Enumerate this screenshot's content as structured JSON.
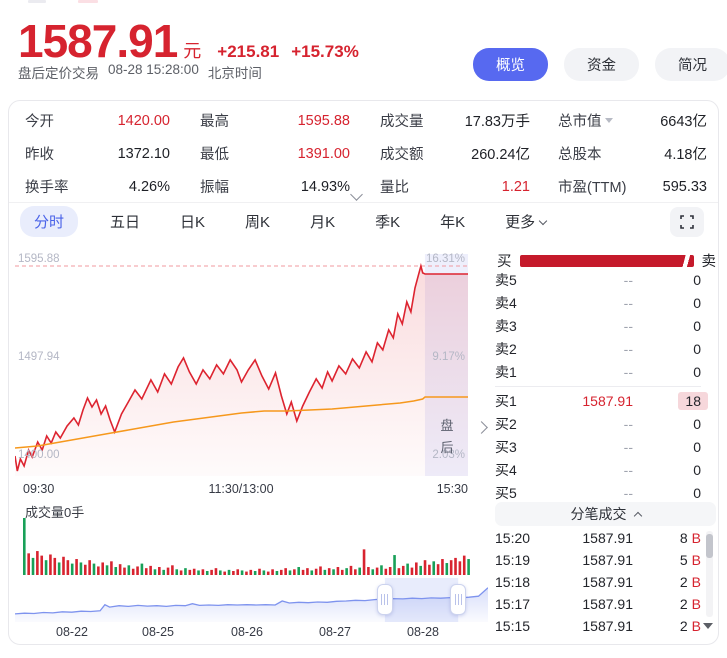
{
  "header": {
    "price": "1587.91",
    "currency": "元",
    "change": "+215.81",
    "change_pct": "+15.73%",
    "session_note": "盘后定价交易",
    "datetime": "08-28 15:28:00",
    "timezone": "北京时间",
    "view_buttons": [
      {
        "label": "概览",
        "active": true
      },
      {
        "label": "资金",
        "active": false
      },
      {
        "label": "简况",
        "active": false
      }
    ]
  },
  "stats": {
    "columns": [
      [
        {
          "label": "今开",
          "value": "1420.00",
          "red": true
        },
        {
          "label": "昨收",
          "value": "1372.10",
          "red": false
        },
        {
          "label": "换手率",
          "value": "4.26%",
          "red": false
        }
      ],
      [
        {
          "label": "最高",
          "value": "1595.88",
          "red": true
        },
        {
          "label": "最低",
          "value": "1391.00",
          "red": true
        },
        {
          "label": "振幅",
          "value": "14.93%",
          "red": false
        }
      ],
      [
        {
          "label": "成交量",
          "value": "17.83万手",
          "red": false
        },
        {
          "label": "成交额",
          "value": "260.24亿",
          "red": false
        },
        {
          "label": "量比",
          "value": "1.21",
          "red": true
        }
      ],
      [
        {
          "label": "总市值",
          "value": "6643亿",
          "red": false,
          "dropdown": true
        },
        {
          "label": "总股本",
          "value": "4.18亿",
          "red": false
        },
        {
          "label": "市盈(TTM)",
          "value": "595.33",
          "red": false
        }
      ]
    ]
  },
  "tabs": {
    "items": [
      "分时",
      "五日",
      "日K",
      "周K",
      "月K",
      "季K",
      "年K"
    ],
    "active_index": 0,
    "more_label": "更多"
  },
  "chart_data": [
    {
      "type": "line",
      "name": "intraday-price",
      "x_labels": [
        "09:30",
        "11:30/13:00",
        "15:30"
      ],
      "y_ticks": [
        "1595.88",
        "1497.94",
        "1400.00"
      ],
      "y_tick_values": [
        1595.88,
        1497.94,
        1400.0
      ],
      "pct_ticks": [
        "16.31%",
        "9.17%",
        "2.03%"
      ],
      "prev_close": 1372.1,
      "high_dashed": 1595.88,
      "last_price": 1587.91,
      "ylim": [
        1388,
        1600
      ],
      "after_hours_label": "盘后",
      "after_hours_start_frac": 0.905,
      "series": [
        {
          "name": "price",
          "color": "#dd2430",
          "points": [
            [
              0,
              1406
            ],
            [
              0.005,
              1391
            ],
            [
              0.012,
              1403
            ],
            [
              0.02,
              1396
            ],
            [
              0.03,
              1412
            ],
            [
              0.038,
              1405
            ],
            [
              0.05,
              1420
            ],
            [
              0.06,
              1412
            ],
            [
              0.07,
              1426
            ],
            [
              0.08,
              1419
            ],
            [
              0.09,
              1430
            ],
            [
              0.1,
              1424
            ],
            [
              0.115,
              1436
            ],
            [
              0.13,
              1444
            ],
            [
              0.14,
              1437
            ],
            [
              0.15,
              1452
            ],
            [
              0.16,
              1464
            ],
            [
              0.17,
              1455
            ],
            [
              0.18,
              1462
            ],
            [
              0.19,
              1448
            ],
            [
              0.2,
              1456
            ],
            [
              0.21,
              1442
            ],
            [
              0.22,
              1430
            ],
            [
              0.235,
              1448
            ],
            [
              0.25,
              1460
            ],
            [
              0.265,
              1472
            ],
            [
              0.28,
              1463
            ],
            [
              0.3,
              1482
            ],
            [
              0.315,
              1470
            ],
            [
              0.33,
              1488
            ],
            [
              0.345,
              1478
            ],
            [
              0.36,
              1495
            ],
            [
              0.372,
              1504
            ],
            [
              0.385,
              1490
            ],
            [
              0.4,
              1478
            ],
            [
              0.415,
              1492
            ],
            [
              0.43,
              1483
            ],
            [
              0.445,
              1497
            ],
            [
              0.46,
              1488
            ],
            [
              0.475,
              1502
            ],
            [
              0.49,
              1492
            ],
            [
              0.5,
              1480
            ],
            [
              0.515,
              1492
            ],
            [
              0.53,
              1502
            ],
            [
              0.545,
              1486
            ],
            [
              0.56,
              1473
            ],
            [
              0.575,
              1489
            ],
            [
              0.588,
              1466
            ],
            [
              0.6,
              1448
            ],
            [
              0.61,
              1460
            ],
            [
              0.622,
              1441
            ],
            [
              0.635,
              1456
            ],
            [
              0.65,
              1470
            ],
            [
              0.665,
              1483
            ],
            [
              0.678,
              1474
            ],
            [
              0.69,
              1490
            ],
            [
              0.7,
              1481
            ],
            [
              0.715,
              1496
            ],
            [
              0.73,
              1488
            ],
            [
              0.745,
              1503
            ],
            [
              0.76,
              1494
            ],
            [
              0.775,
              1510
            ],
            [
              0.788,
              1500
            ],
            [
              0.8,
              1519
            ],
            [
              0.812,
              1512
            ],
            [
              0.825,
              1532
            ],
            [
              0.835,
              1524
            ],
            [
              0.845,
              1548
            ],
            [
              0.855,
              1538
            ],
            [
              0.865,
              1560
            ],
            [
              0.874,
              1550
            ],
            [
              0.883,
              1574
            ],
            [
              0.89,
              1586
            ],
            [
              0.896,
              1595.88
            ],
            [
              0.9,
              1589
            ],
            [
              0.905,
              1587.91
            ],
            [
              1,
              1587.91
            ]
          ]
        },
        {
          "name": "avg",
          "color": "#f6981c",
          "points": [
            [
              0,
              1414
            ],
            [
              0.05,
              1416
            ],
            [
              0.1,
              1420
            ],
            [
              0.15,
              1424
            ],
            [
              0.2,
              1428
            ],
            [
              0.25,
              1432
            ],
            [
              0.3,
              1436
            ],
            [
              0.35,
              1440
            ],
            [
              0.4,
              1443
            ],
            [
              0.45,
              1446
            ],
            [
              0.5,
              1449
            ],
            [
              0.55,
              1451
            ],
            [
              0.6,
              1451
            ],
            [
              0.65,
              1452
            ],
            [
              0.7,
              1453
            ],
            [
              0.75,
              1455
            ],
            [
              0.8,
              1457
            ],
            [
              0.85,
              1459
            ],
            [
              0.88,
              1461
            ],
            [
              0.9,
              1463
            ],
            [
              0.905,
              1465
            ],
            [
              1,
              1465
            ]
          ]
        }
      ]
    },
    {
      "type": "bar",
      "name": "intraday-volume",
      "label": "成交量0手",
      "up_color": "#d8232f",
      "down_color": "#18a058",
      "heights": [
        100,
        38,
        30,
        42,
        34,
        26,
        36,
        30,
        22,
        32,
        26,
        20,
        28,
        22,
        18,
        26,
        20,
        15,
        22,
        17,
        24,
        14,
        19,
        13,
        17,
        11,
        15,
        20,
        12,
        16,
        10,
        14,
        9,
        13,
        17,
        10,
        8,
        12,
        9,
        11,
        8,
        10,
        7,
        9,
        12,
        8,
        6,
        9,
        7,
        10,
        8,
        6,
        9,
        7,
        11,
        8,
        6,
        10,
        7,
        9,
        12,
        8,
        10,
        14,
        9,
        12,
        8,
        11,
        15,
        9,
        12,
        10,
        14,
        9,
        12,
        16,
        10,
        13,
        45,
        14,
        10,
        13,
        17,
        11,
        14,
        35,
        12,
        16,
        20,
        13,
        22,
        16,
        26,
        18,
        24,
        19,
        28,
        21,
        26,
        30,
        24,
        34,
        28,
        62
      ],
      "colors": "grgrrgrrgrrgrgrrgrrgrgrrgrrgrrgrgrrgrgrrgrgrrgrgrrgrrgrgrrgrrgrgrrgrrgrgrrgrrgrrgrgrrgrrgrrgrrgrrgrrrrg"
    },
    {
      "type": "area",
      "name": "history-navigator",
      "x_labels": [
        "08-22",
        "08-25",
        "08-26",
        "08-27",
        "08-28"
      ],
      "color": "#7e93ee",
      "brush": [
        0.782,
        0.937
      ],
      "points": [
        [
          0,
          0.18
        ],
        [
          0.02,
          0.2
        ],
        [
          0.04,
          0.19
        ],
        [
          0.06,
          0.22
        ],
        [
          0.08,
          0.21
        ],
        [
          0.1,
          0.24
        ],
        [
          0.12,
          0.23
        ],
        [
          0.14,
          0.26
        ],
        [
          0.16,
          0.25
        ],
        [
          0.18,
          0.27
        ],
        [
          0.19,
          0.45
        ],
        [
          0.2,
          0.38
        ],
        [
          0.22,
          0.42
        ],
        [
          0.24,
          0.4
        ],
        [
          0.26,
          0.43
        ],
        [
          0.28,
          0.41
        ],
        [
          0.3,
          0.42
        ],
        [
          0.32,
          0.4
        ],
        [
          0.34,
          0.43
        ],
        [
          0.36,
          0.42
        ],
        [
          0.375,
          0.48
        ],
        [
          0.39,
          0.43
        ],
        [
          0.41,
          0.44
        ],
        [
          0.43,
          0.43
        ],
        [
          0.45,
          0.45
        ],
        [
          0.47,
          0.44
        ],
        [
          0.49,
          0.45
        ],
        [
          0.51,
          0.44
        ],
        [
          0.53,
          0.45
        ],
        [
          0.55,
          0.44
        ],
        [
          0.565,
          0.56
        ],
        [
          0.58,
          0.5
        ],
        [
          0.6,
          0.52
        ],
        [
          0.62,
          0.51
        ],
        [
          0.64,
          0.53
        ],
        [
          0.66,
          0.52
        ],
        [
          0.68,
          0.55
        ],
        [
          0.7,
          0.56
        ],
        [
          0.72,
          0.58
        ],
        [
          0.74,
          0.57
        ],
        [
          0.76,
          0.6
        ],
        [
          0.78,
          0.62
        ],
        [
          0.8,
          0.63
        ],
        [
          0.82,
          0.62
        ],
        [
          0.84,
          0.64
        ],
        [
          0.86,
          0.63
        ],
        [
          0.88,
          0.65
        ],
        [
          0.9,
          0.64
        ],
        [
          0.92,
          0.66
        ],
        [
          0.94,
          0.65
        ],
        [
          0.96,
          0.67
        ],
        [
          0.98,
          0.7
        ],
        [
          1.0,
          0.95
        ]
      ]
    }
  ],
  "order_book": {
    "buy_label": "买",
    "sell_label": "卖",
    "asks": [
      {
        "label": "卖5",
        "price": "--",
        "qty": "0"
      },
      {
        "label": "卖4",
        "price": "--",
        "qty": "0"
      },
      {
        "label": "卖3",
        "price": "--",
        "qty": "0"
      },
      {
        "label": "卖2",
        "price": "--",
        "qty": "0"
      },
      {
        "label": "卖1",
        "price": "--",
        "qty": "0"
      }
    ],
    "bids": [
      {
        "label": "买1",
        "price": "1587.91",
        "qty": "18",
        "highlight": true,
        "red_price": true
      },
      {
        "label": "买2",
        "price": "--",
        "qty": "0"
      },
      {
        "label": "买3",
        "price": "--",
        "qty": "0"
      },
      {
        "label": "买4",
        "price": "--",
        "qty": "0"
      },
      {
        "label": "买5",
        "price": "--",
        "qty": "0"
      }
    ]
  },
  "tick_trades": {
    "title": "分笔成交",
    "rows": [
      {
        "time": "15:20",
        "price": "1587.91",
        "qty": "8",
        "side": "B"
      },
      {
        "time": "15:19",
        "price": "1587.91",
        "qty": "5",
        "side": "B"
      },
      {
        "time": "15:18",
        "price": "1587.91",
        "qty": "2",
        "side": "B"
      },
      {
        "time": "15:17",
        "price": "1587.91",
        "qty": "2",
        "side": "B"
      },
      {
        "time": "15:15",
        "price": "1587.91",
        "qty": "2",
        "side": "B"
      }
    ]
  },
  "colors": {
    "accent_red": "#d6232f",
    "accent_blue": "#5769f0",
    "up": "#d8232f",
    "down": "#18a058",
    "avg_line": "#f6981c",
    "navigator": "#7e93ee",
    "after_hours_bg": "#eceefb"
  }
}
